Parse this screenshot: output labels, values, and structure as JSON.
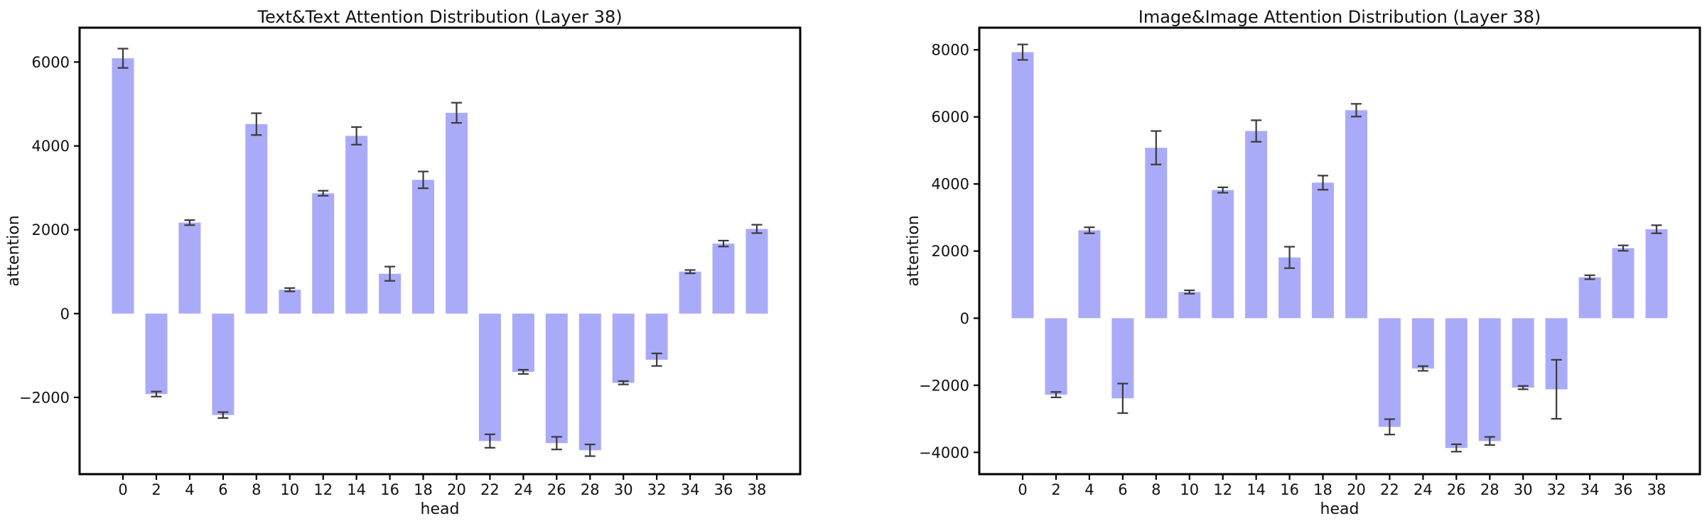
{
  "page": {
    "background": "#ffffff"
  },
  "chart_data": [
    {
      "type": "bar",
      "title": "Text&Text Attention Distribution (Layer 38)",
      "xlabel": "head",
      "ylabel": "attention",
      "categories": [
        0,
        2,
        4,
        6,
        8,
        10,
        12,
        14,
        16,
        18,
        20,
        22,
        24,
        26,
        28,
        30,
        32,
        34,
        36,
        38
      ],
      "values": [
        6090,
        -1920,
        2170,
        -2420,
        4520,
        570,
        2870,
        4240,
        950,
        3190,
        4790,
        -3040,
        -1390,
        -3090,
        -3260,
        -1650,
        -1100,
        1000,
        1670,
        2020
      ],
      "errors": [
        230,
        60,
        60,
        70,
        260,
        40,
        60,
        210,
        170,
        200,
        240,
        160,
        50,
        150,
        140,
        40,
        150,
        40,
        70,
        100
      ],
      "ylim": [
        -3830,
        6820
      ],
      "yticks": [
        -2000,
        0,
        2000,
        4000,
        6000
      ],
      "bar_color": "#aaabf8",
      "error_color": "#3a3a3a",
      "grid": false,
      "legend": null
    },
    {
      "type": "bar",
      "title": "Image&Image Attention Distribution (Layer 38)",
      "xlabel": "head",
      "ylabel": "attention",
      "categories": [
        0,
        2,
        4,
        6,
        8,
        10,
        12,
        14,
        16,
        18,
        20,
        22,
        24,
        26,
        28,
        30,
        32,
        34,
        36,
        38
      ],
      "values": [
        7930,
        -2280,
        2620,
        -2390,
        5080,
        780,
        3820,
        5580,
        1810,
        4040,
        6200,
        -3240,
        -1500,
        -3870,
        -3660,
        -2070,
        -2120,
        1220,
        2090,
        2650
      ],
      "errors": [
        230,
        80,
        90,
        440,
        500,
        50,
        80,
        320,
        320,
        210,
        190,
        230,
        70,
        110,
        120,
        50,
        880,
        60,
        80,
        120
      ],
      "ylim": [
        -4650,
        8660
      ],
      "yticks": [
        -4000,
        -2000,
        0,
        2000,
        4000,
        6000,
        8000
      ],
      "bar_color": "#aaabf8",
      "error_color": "#3a3a3a",
      "grid": false,
      "legend": null
    }
  ]
}
